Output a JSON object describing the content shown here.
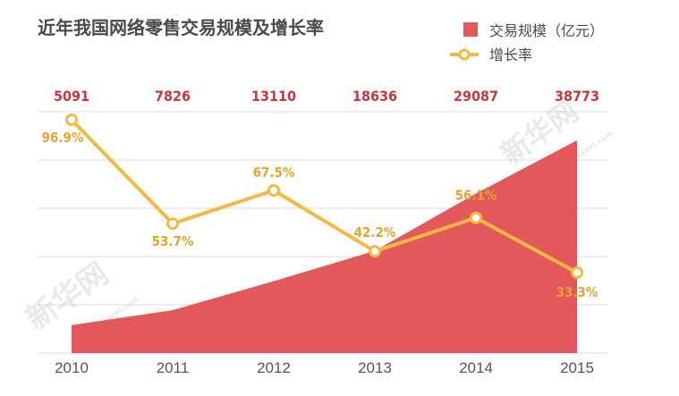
{
  "chart_data": {
    "type": "area",
    "title": "近年我国网络零售交易规模及增长率",
    "categories": [
      "2010",
      "2011",
      "2012",
      "2013",
      "2014",
      "2015"
    ],
    "series": [
      {
        "name": "交易规模（亿元）",
        "type": "area",
        "values": [
          5091,
          7826,
          13110,
          18636,
          29087,
          38773
        ],
        "color": "#e3585b"
      },
      {
        "name": "增长率",
        "type": "line",
        "values": [
          96.9,
          53.7,
          67.5,
          42.2,
          56.1,
          33.3
        ],
        "unit": "%",
        "color": "#f2b944"
      }
    ],
    "value_labels": [
      "5091",
      "7826",
      "13110",
      "18636",
      "29087",
      "38773"
    ],
    "rate_labels": [
      "96.9%",
      "53.7%",
      "67.5%",
      "42.2%",
      "56.1%",
      "33.3%"
    ],
    "legend_position": "top-right",
    "grid": true
  },
  "watermark": {
    "text": "新华网",
    "url_text": "www.xinhuanet.com"
  }
}
